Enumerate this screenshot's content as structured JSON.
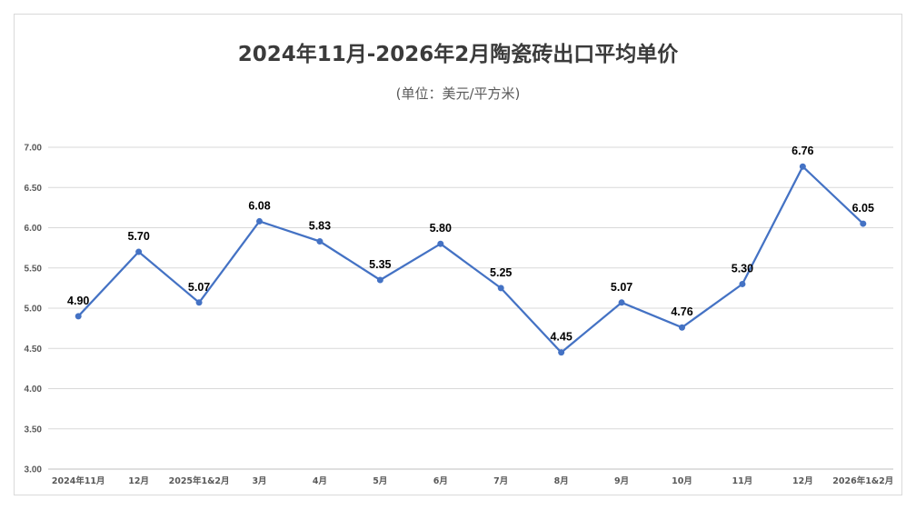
{
  "chart_data": {
    "type": "line",
    "title": "2024年11月-2026年2月陶瓷砖出口平均单价",
    "subtitle": "(单位：美元/平方米)",
    "xlabel": "",
    "ylabel": "",
    "categories": [
      "2024年11月",
      "12月",
      "2025年1&2月",
      "3月",
      "4月",
      "5月",
      "6月",
      "7月",
      "8月",
      "9月",
      "10月",
      "11月",
      "12月",
      "2026年1&2月"
    ],
    "series": [
      {
        "values": [
          4.9,
          5.7,
          5.07,
          6.08,
          5.83,
          5.35,
          5.8,
          5.25,
          4.45,
          5.07,
          4.76,
          5.3,
          6.76,
          6.05
        ]
      }
    ],
    "data_labels": [
      "4.90",
      "5.70",
      "5.07",
      "6.08",
      "5.83",
      "5.35",
      "5.80",
      "5.25",
      "4.45",
      "5.07",
      "4.76",
      "5.30",
      "6.76",
      "6.05"
    ],
    "y_ticks": [
      "3.00",
      "3.50",
      "4.00",
      "4.50",
      "5.00",
      "5.50",
      "6.00",
      "6.50",
      "7.00"
    ],
    "ylim": [
      3.0,
      7.0
    ],
    "grid": true,
    "legend": "none",
    "line_color": "#4472c4"
  }
}
